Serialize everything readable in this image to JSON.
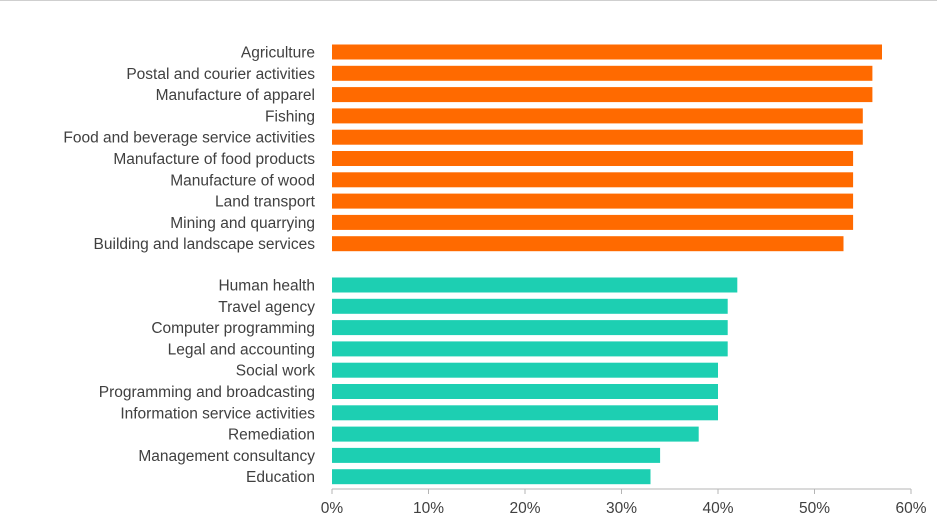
{
  "colors": {
    "group_1": "#ff6a00",
    "group_2": "#1dcfb2",
    "axis": "#b5b5b5",
    "text": "#404040"
  },
  "chart_data": {
    "type": "bar",
    "orientation": "horizontal",
    "title": "",
    "xlabel": "",
    "ylabel": "",
    "xlim": [
      0,
      60
    ],
    "value_format": "percent",
    "ticks": [
      "0%",
      "10%",
      "20%",
      "30%",
      "40%",
      "50%",
      "60%"
    ],
    "tick_values": [
      0,
      10,
      20,
      30,
      40,
      50,
      60
    ],
    "grid": false,
    "legend": "none",
    "groups": [
      {
        "color": "#ff6a00",
        "categories": [
          "Agriculture",
          "Postal and courier activities",
          "Manufacture of apparel",
          "Fishing",
          "Food and beverage service activities",
          "Manufacture of food products",
          "Manufacture of wood",
          "Land transport",
          "Mining and quarrying",
          "Building and landscape services"
        ],
        "values": [
          57,
          56,
          56,
          55,
          55,
          54,
          54,
          54,
          54,
          53
        ]
      },
      {
        "color": "#1dcfb2",
        "categories": [
          "Human health",
          "Travel agency",
          "Computer programming",
          "Legal and accounting",
          "Social work",
          "Programming and broadcasting",
          "Information service activities",
          "Remediation",
          "Management consultancy",
          "Education"
        ],
        "values": [
          42,
          41,
          41,
          41,
          40,
          40,
          40,
          38,
          34,
          33
        ]
      }
    ]
  }
}
